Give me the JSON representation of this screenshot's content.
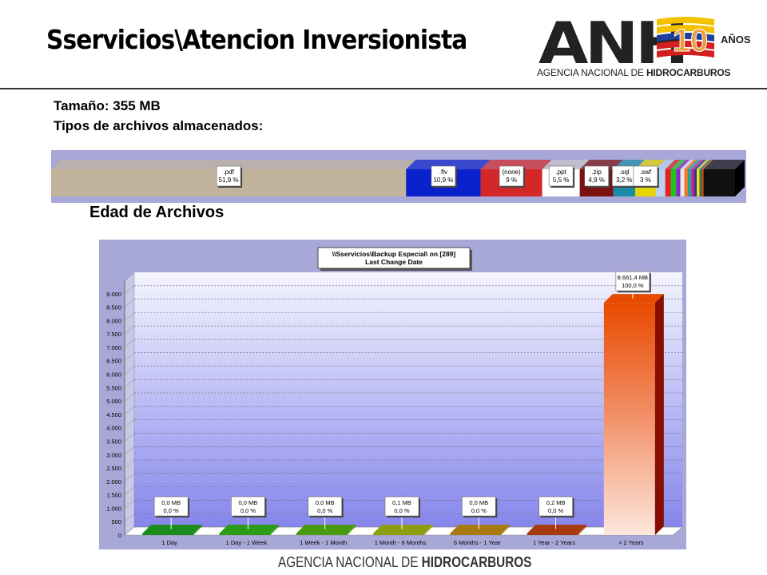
{
  "slide": {
    "title": "Sservicios\\Atencion Inversionista",
    "size_label": "Tamaño: 355 MB",
    "types_label": "Tipos de archivos almacenados:",
    "age_section_title": "Edad de Archivos",
    "footer_regular": "AGENCIA NACIONAL DE ",
    "footer_bold": "HIDROCARBUROS"
  },
  "logo": {
    "letters": "ANH",
    "anniversary": "10",
    "years": "AÑOS",
    "sub_regular": "AGENCIA NACIONAL DE ",
    "sub_bold": "HIDROCARBUROS"
  },
  "colors": {
    "axis_wall": "#a8a8d8",
    "plot_bg_top": "#f4f4ff",
    "plot_bg_bottom": "#8686ec",
    "last_bar_top": "#e84a00",
    "last_bar_bottom": "#fde6dc"
  },
  "chart_data": [
    {
      "type": "bar",
      "orientation": "horizontal-stacked",
      "segments": [
        {
          "label": ".pdf",
          "percent_label": "51,9 %",
          "value": 51.9,
          "color": "#c2b39c"
        },
        {
          "label": ".flv",
          "percent_label": "10,9 %",
          "value": 10.9,
          "color": "#0a22cc"
        },
        {
          "label": "(none)",
          "percent_label": "9 %",
          "value": 9,
          "color": "#d42828"
        },
        {
          "label": ".ppt",
          "percent_label": "5,5 %",
          "value": 5.5,
          "color": "#ffffff"
        },
        {
          "label": ".zip",
          "percent_label": "4,9 %",
          "value": 4.9,
          "color": "#7a1010"
        },
        {
          "label": ".sql",
          "percent_label": "3,2 %",
          "value": 3.2,
          "color": "#1a8ca8"
        },
        {
          "label": ".swf",
          "percent_label": "3 %",
          "value": 3,
          "color": "#e8d400"
        },
        {
          "label": "",
          "percent_label": "",
          "value": 1.4,
          "color": "#b8d4f0"
        },
        {
          "label": "",
          "percent_label": "",
          "value": 0.8,
          "color": "#e82020"
        },
        {
          "label": "",
          "percent_label": "",
          "value": 0.8,
          "color": "#20c020"
        },
        {
          "label": "",
          "percent_label": "",
          "value": 0.6,
          "color": "#8828c8"
        },
        {
          "label": "",
          "percent_label": "",
          "value": 0.6,
          "color": "#e8e8e8"
        },
        {
          "label": "",
          "percent_label": "",
          "value": 0.5,
          "color": "#f07820"
        },
        {
          "label": "",
          "percent_label": "",
          "value": 0.5,
          "color": "#20a0a0"
        },
        {
          "label": "",
          "percent_label": "",
          "value": 0.4,
          "color": "#d02080"
        },
        {
          "label": "",
          "percent_label": "",
          "value": 0.4,
          "color": "#3030a0"
        },
        {
          "label": "",
          "percent_label": "",
          "value": 0.4,
          "color": "#f0e020"
        },
        {
          "label": "",
          "percent_label": "",
          "value": 0.3,
          "color": "#208040"
        },
        {
          "label": "",
          "percent_label": "",
          "value": 0.3,
          "color": "#c84010"
        },
        {
          "label": "",
          "percent_label": "",
          "value": 4.6,
          "color": "#111111"
        }
      ]
    },
    {
      "type": "bar",
      "title": "\\\\Sservicios\\Backup Especial\\  on  [289]",
      "subtitle": "Last Change Date",
      "categories": [
        "1 Day",
        "1 Day - 1 Week",
        "1 Week - 1 Month",
        "1 Month - 6 Months",
        "6 Months - 1 Year",
        "1 Year - 2 Years",
        "> 2 Years"
      ],
      "values": [
        0.0,
        0.0,
        0.0,
        0.1,
        0.0,
        0.2,
        8661.4
      ],
      "value_labels": [
        "0,0 MB",
        "0,0 MB",
        "0,0 MB",
        "0,1 MB",
        "0,0 MB",
        "0,2 MB",
        "8.661,4 MB"
      ],
      "percent_labels": [
        "0,0 %",
        "0,0 %",
        "0,0 %",
        "0,0 %",
        "0,0 %",
        "0,0 %",
        "100,0 %"
      ],
      "colors": [
        "#1c8c1c",
        "#2c9c18",
        "#4a9a10",
        "#8c9e10",
        "#a87a10",
        "#a83a10",
        "#e84a00"
      ],
      "ylim": [
        0,
        9500
      ],
      "yticks": [
        0,
        500,
        1000,
        1500,
        2000,
        2500,
        3000,
        3500,
        4000,
        4500,
        5000,
        5500,
        6000,
        6500,
        7000,
        7500,
        8000,
        8500,
        9000
      ],
      "ytick_labels": [
        "0",
        "500",
        "1.000",
        "1.500",
        "2.000",
        "2.500",
        "3.000",
        "3.500",
        "4.000",
        "4.500",
        "5.000",
        "5.500",
        "6.000",
        "6.500",
        "7.000",
        "7.500",
        "8.000",
        "8.500",
        "9.000"
      ],
      "grid": true
    }
  ]
}
